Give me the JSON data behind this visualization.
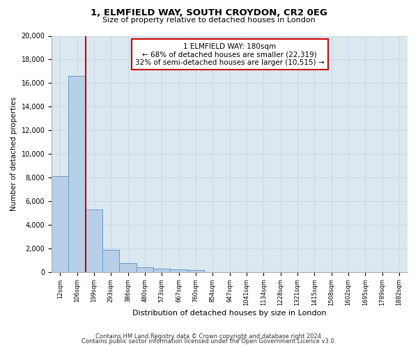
{
  "title1": "1, ELMFIELD WAY, SOUTH CROYDON, CR2 0EG",
  "title2": "Size of property relative to detached houses in London",
  "xlabel": "Distribution of detached houses by size in London",
  "ylabel": "Number of detached properties",
  "categories": [
    "12sqm",
    "106sqm",
    "199sqm",
    "293sqm",
    "386sqm",
    "480sqm",
    "573sqm",
    "667sqm",
    "760sqm",
    "854sqm",
    "947sqm",
    "1041sqm",
    "1134sqm",
    "1228sqm",
    "1321sqm",
    "1415sqm",
    "1508sqm",
    "1602sqm",
    "1695sqm",
    "1789sqm",
    "1882sqm"
  ],
  "values": [
    8100,
    16600,
    5300,
    1850,
    750,
    380,
    270,
    210,
    180,
    0,
    0,
    0,
    0,
    0,
    0,
    0,
    0,
    0,
    0,
    0,
    0
  ],
  "bar_color": "#b8cfe8",
  "bar_edge_color": "#6699cc",
  "vline_x": 1.5,
  "vline_color": "#cc0000",
  "annotation_line1": "1 ELMFIELD WAY: 180sqm",
  "annotation_line2": "← 68% of detached houses are smaller (22,319)",
  "annotation_line3": "32% of semi-detached houses are larger (10,515) →",
  "annotation_box_color": "#ffffff",
  "annotation_box_edge": "#cc0000",
  "ylim": [
    0,
    20000
  ],
  "yticks": [
    0,
    2000,
    4000,
    6000,
    8000,
    10000,
    12000,
    14000,
    16000,
    18000,
    20000
  ],
  "grid_color": "#c8d8e8",
  "bg_color": "#dce8f0",
  "fig_bg_color": "#ffffff",
  "footer1": "Contains HM Land Registry data © Crown copyright and database right 2024.",
  "footer2": "Contains public sector information licensed under the Open Government Licence v3.0."
}
